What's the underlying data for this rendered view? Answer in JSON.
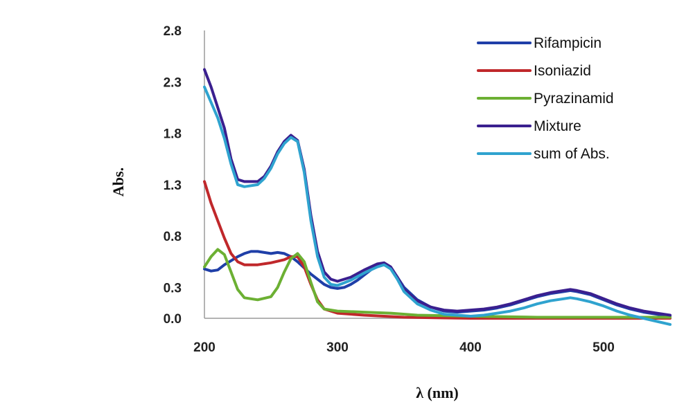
{
  "chart_data": {
    "type": "line",
    "xlabel": "λ (nm)",
    "ylabel": "Abs.",
    "xlim": [
      200,
      550
    ],
    "ylim": [
      0,
      2.8
    ],
    "x_ticks": [
      200,
      300,
      400,
      500
    ],
    "y_ticks": [
      "0.0",
      "0.3",
      "0.8",
      "1.3",
      "1.8",
      "2.3",
      "2.8"
    ],
    "grid": false,
    "legend_position": "top-right",
    "series": [
      {
        "name": "Rifampicin",
        "color": "#1f3fa8",
        "points": [
          [
            200,
            0.48
          ],
          [
            205,
            0.46
          ],
          [
            210,
            0.47
          ],
          [
            215,
            0.52
          ],
          [
            220,
            0.56
          ],
          [
            225,
            0.6
          ],
          [
            230,
            0.63
          ],
          [
            235,
            0.65
          ],
          [
            240,
            0.65
          ],
          [
            245,
            0.64
          ],
          [
            250,
            0.63
          ],
          [
            255,
            0.64
          ],
          [
            260,
            0.63
          ],
          [
            265,
            0.6
          ],
          [
            270,
            0.55
          ],
          [
            275,
            0.49
          ],
          [
            280,
            0.43
          ],
          [
            285,
            0.38
          ],
          [
            290,
            0.33
          ],
          [
            295,
            0.3
          ],
          [
            300,
            0.29
          ],
          [
            305,
            0.3
          ],
          [
            310,
            0.33
          ],
          [
            315,
            0.37
          ],
          [
            320,
            0.42
          ],
          [
            325,
            0.47
          ],
          [
            330,
            0.51
          ],
          [
            335,
            0.52
          ],
          [
            340,
            0.49
          ],
          [
            345,
            0.4
          ],
          [
            350,
            0.3
          ],
          [
            360,
            0.18
          ],
          [
            370,
            0.11
          ],
          [
            380,
            0.07
          ],
          [
            390,
            0.06
          ],
          [
            400,
            0.07
          ],
          [
            410,
            0.08
          ],
          [
            420,
            0.1
          ],
          [
            430,
            0.13
          ],
          [
            440,
            0.17
          ],
          [
            450,
            0.21
          ],
          [
            460,
            0.24
          ],
          [
            470,
            0.26
          ],
          [
            475,
            0.27
          ],
          [
            480,
            0.26
          ],
          [
            490,
            0.23
          ],
          [
            500,
            0.18
          ],
          [
            510,
            0.13
          ],
          [
            520,
            0.09
          ],
          [
            530,
            0.06
          ],
          [
            540,
            0.04
          ],
          [
            550,
            0.02
          ]
        ]
      },
      {
        "name": "Isoniazid",
        "color": "#c0282b",
        "points": [
          [
            200,
            1.33
          ],
          [
            205,
            1.12
          ],
          [
            210,
            0.95
          ],
          [
            215,
            0.78
          ],
          [
            220,
            0.63
          ],
          [
            225,
            0.55
          ],
          [
            230,
            0.52
          ],
          [
            240,
            0.52
          ],
          [
            250,
            0.54
          ],
          [
            260,
            0.57
          ],
          [
            265,
            0.6
          ],
          [
            270,
            0.6
          ],
          [
            275,
            0.5
          ],
          [
            280,
            0.33
          ],
          [
            285,
            0.18
          ],
          [
            290,
            0.09
          ],
          [
            300,
            0.05
          ],
          [
            320,
            0.03
          ],
          [
            350,
            0.01
          ],
          [
            400,
            0.0
          ],
          [
            550,
            0.0
          ]
        ]
      },
      {
        "name": "Pyrazinamid",
        "color": "#6cb033",
        "points": [
          [
            200,
            0.5
          ],
          [
            205,
            0.6
          ],
          [
            210,
            0.67
          ],
          [
            215,
            0.62
          ],
          [
            220,
            0.45
          ],
          [
            225,
            0.28
          ],
          [
            230,
            0.2
          ],
          [
            240,
            0.18
          ],
          [
            250,
            0.21
          ],
          [
            255,
            0.3
          ],
          [
            260,
            0.45
          ],
          [
            265,
            0.58
          ],
          [
            270,
            0.63
          ],
          [
            275,
            0.55
          ],
          [
            280,
            0.35
          ],
          [
            285,
            0.16
          ],
          [
            290,
            0.09
          ],
          [
            300,
            0.07
          ],
          [
            320,
            0.06
          ],
          [
            340,
            0.05
          ],
          [
            360,
            0.03
          ],
          [
            400,
            0.02
          ],
          [
            450,
            0.01
          ],
          [
            500,
            0.01
          ],
          [
            550,
            0.01
          ]
        ]
      },
      {
        "name": "Mixture",
        "color": "#3a1f8f",
        "points": [
          [
            200,
            2.42
          ],
          [
            205,
            2.25
          ],
          [
            210,
            2.05
          ],
          [
            215,
            1.85
          ],
          [
            220,
            1.55
          ],
          [
            225,
            1.35
          ],
          [
            230,
            1.33
          ],
          [
            240,
            1.33
          ],
          [
            245,
            1.38
          ],
          [
            250,
            1.48
          ],
          [
            255,
            1.62
          ],
          [
            260,
            1.72
          ],
          [
            265,
            1.78
          ],
          [
            270,
            1.73
          ],
          [
            275,
            1.45
          ],
          [
            280,
            1.0
          ],
          [
            285,
            0.65
          ],
          [
            290,
            0.45
          ],
          [
            295,
            0.38
          ],
          [
            300,
            0.36
          ],
          [
            310,
            0.4
          ],
          [
            320,
            0.47
          ],
          [
            330,
            0.53
          ],
          [
            335,
            0.54
          ],
          [
            340,
            0.5
          ],
          [
            345,
            0.4
          ],
          [
            350,
            0.28
          ],
          [
            360,
            0.17
          ],
          [
            370,
            0.11
          ],
          [
            380,
            0.08
          ],
          [
            390,
            0.07
          ],
          [
            400,
            0.08
          ],
          [
            410,
            0.09
          ],
          [
            420,
            0.11
          ],
          [
            430,
            0.14
          ],
          [
            440,
            0.18
          ],
          [
            450,
            0.22
          ],
          [
            460,
            0.25
          ],
          [
            470,
            0.27
          ],
          [
            475,
            0.28
          ],
          [
            480,
            0.27
          ],
          [
            490,
            0.24
          ],
          [
            500,
            0.19
          ],
          [
            510,
            0.14
          ],
          [
            520,
            0.1
          ],
          [
            530,
            0.07
          ],
          [
            540,
            0.05
          ],
          [
            550,
            0.03
          ]
        ]
      },
      {
        "name": "sum of Abs.",
        "color": "#2fa3cf",
        "points": [
          [
            200,
            2.25
          ],
          [
            205,
            2.1
          ],
          [
            210,
            1.95
          ],
          [
            215,
            1.75
          ],
          [
            220,
            1.5
          ],
          [
            225,
            1.3
          ],
          [
            230,
            1.28
          ],
          [
            240,
            1.3
          ],
          [
            245,
            1.36
          ],
          [
            250,
            1.46
          ],
          [
            255,
            1.6
          ],
          [
            260,
            1.7
          ],
          [
            265,
            1.76
          ],
          [
            270,
            1.72
          ],
          [
            275,
            1.42
          ],
          [
            280,
            0.95
          ],
          [
            285,
            0.6
          ],
          [
            290,
            0.4
          ],
          [
            295,
            0.33
          ],
          [
            300,
            0.32
          ],
          [
            310,
            0.37
          ],
          [
            320,
            0.44
          ],
          [
            330,
            0.5
          ],
          [
            335,
            0.52
          ],
          [
            340,
            0.48
          ],
          [
            345,
            0.38
          ],
          [
            350,
            0.26
          ],
          [
            360,
            0.14
          ],
          [
            370,
            0.08
          ],
          [
            380,
            0.04
          ],
          [
            390,
            0.03
          ],
          [
            400,
            0.02
          ],
          [
            410,
            0.03
          ],
          [
            420,
            0.05
          ],
          [
            430,
            0.07
          ],
          [
            440,
            0.1
          ],
          [
            450,
            0.14
          ],
          [
            460,
            0.17
          ],
          [
            470,
            0.19
          ],
          [
            475,
            0.2
          ],
          [
            480,
            0.19
          ],
          [
            490,
            0.16
          ],
          [
            500,
            0.12
          ],
          [
            510,
            0.07
          ],
          [
            520,
            0.03
          ],
          [
            530,
            0.0
          ],
          [
            540,
            -0.03
          ],
          [
            550,
            -0.06
          ]
        ]
      }
    ]
  }
}
